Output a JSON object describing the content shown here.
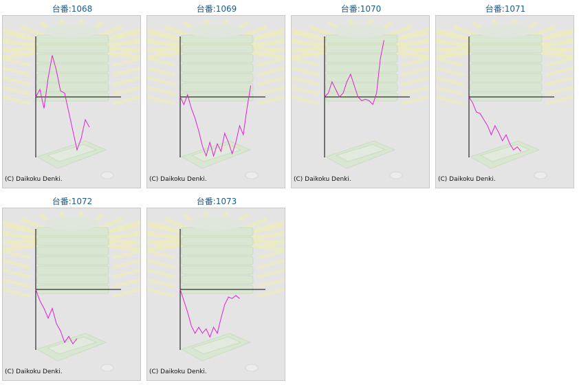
{
  "colors": {
    "title": "#1a5a8e",
    "line": "#e020d0",
    "axis": "#000000",
    "panel_bg": "#e4e4e4"
  },
  "copyright": "(C) Daikoku Denki.",
  "machines": [
    {
      "title": "台番:1068",
      "chart_data": {
        "type": "line",
        "y": [
          0,
          10,
          -15,
          25,
          55,
          35,
          8,
          5,
          -20,
          -45,
          -70,
          -55,
          -30,
          -40
        ]
      }
    },
    {
      "title": "台番:1069",
      "chart_data": {
        "type": "line",
        "y": [
          0,
          -10,
          3,
          -15,
          -28,
          -45,
          -65,
          -78,
          -60,
          -78,
          -62,
          -72,
          -48,
          -60,
          -75,
          -60,
          -38,
          -50,
          -15,
          15
        ]
      }
    },
    {
      "title": "台番:1070",
      "chart_data": {
        "type": "line",
        "y": [
          0,
          5,
          20,
          10,
          0,
          5,
          20,
          30,
          15,
          0,
          -5,
          -3,
          -5,
          -10,
          5,
          50,
          75
        ]
      }
    },
    {
      "title": "台番:1071",
      "chart_data": {
        "type": "line",
        "y": [
          0,
          -8,
          -20,
          -22,
          -30,
          -38,
          -50,
          -38,
          -47,
          -58,
          -50,
          -62,
          -70,
          -66,
          -72
        ]
      }
    },
    {
      "title": "台番:1072",
      "chart_data": {
        "type": "line",
        "y": [
          0,
          -15,
          -25,
          -38,
          -25,
          -45,
          -55,
          -70,
          -62,
          -72,
          -65
        ]
      }
    },
    {
      "title": "台番:1073",
      "chart_data": {
        "type": "line",
        "y": [
          0,
          -15,
          -30,
          -48,
          -58,
          -50,
          -58,
          -52,
          -63,
          -50,
          -58,
          -38,
          -20,
          -10,
          -12,
          -8,
          -12
        ]
      }
    }
  ]
}
